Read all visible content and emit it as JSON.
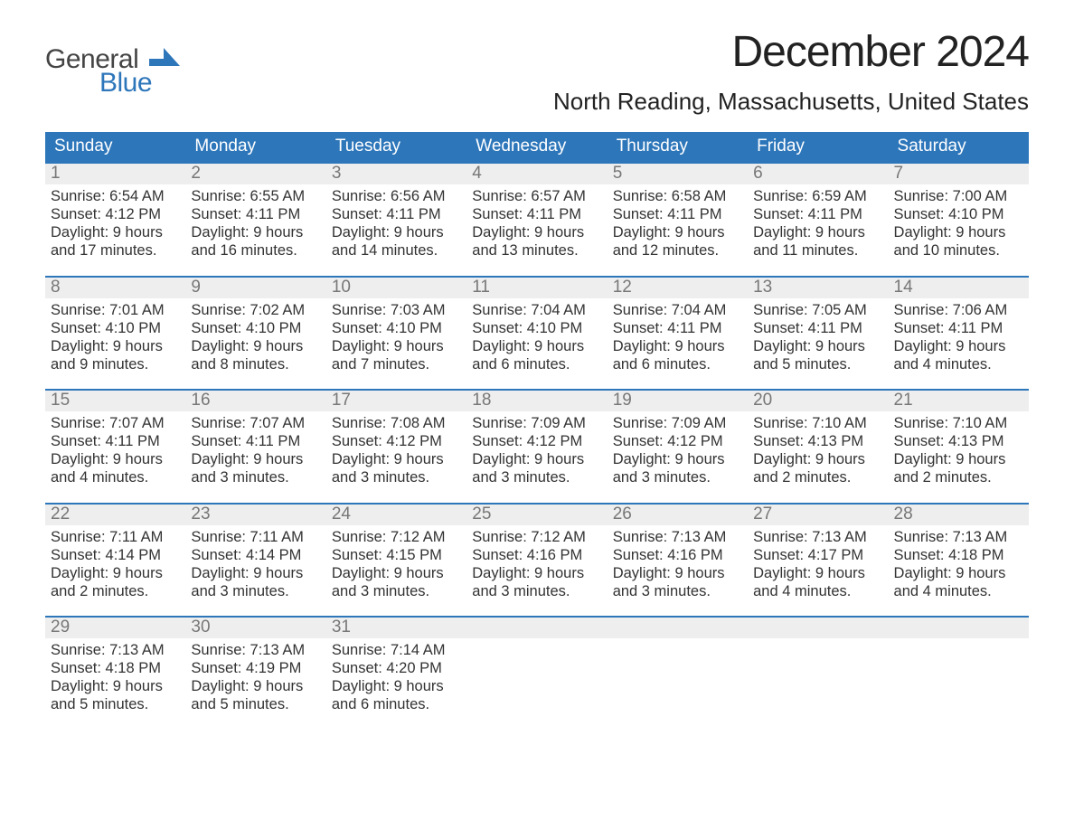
{
  "logo": {
    "line1": "General",
    "line2": "Blue"
  },
  "title": "December 2024",
  "location": "North Reading, Massachusetts, United States",
  "weekdays": [
    "Sunday",
    "Monday",
    "Tuesday",
    "Wednesday",
    "Thursday",
    "Friday",
    "Saturday"
  ],
  "colors": {
    "header_blue": "#2d76ba",
    "day_bg": "#eeeeee",
    "text": "#222222",
    "logo_blue": "#2d76ba"
  },
  "weeks": [
    [
      {
        "n": "1",
        "sr": "Sunrise: 6:54 AM",
        "ss": "Sunset: 4:12 PM",
        "d1": "Daylight: 9 hours",
        "d2": "and 17 minutes."
      },
      {
        "n": "2",
        "sr": "Sunrise: 6:55 AM",
        "ss": "Sunset: 4:11 PM",
        "d1": "Daylight: 9 hours",
        "d2": "and 16 minutes."
      },
      {
        "n": "3",
        "sr": "Sunrise: 6:56 AM",
        "ss": "Sunset: 4:11 PM",
        "d1": "Daylight: 9 hours",
        "d2": "and 14 minutes."
      },
      {
        "n": "4",
        "sr": "Sunrise: 6:57 AM",
        "ss": "Sunset: 4:11 PM",
        "d1": "Daylight: 9 hours",
        "d2": "and 13 minutes."
      },
      {
        "n": "5",
        "sr": "Sunrise: 6:58 AM",
        "ss": "Sunset: 4:11 PM",
        "d1": "Daylight: 9 hours",
        "d2": "and 12 minutes."
      },
      {
        "n": "6",
        "sr": "Sunrise: 6:59 AM",
        "ss": "Sunset: 4:11 PM",
        "d1": "Daylight: 9 hours",
        "d2": "and 11 minutes."
      },
      {
        "n": "7",
        "sr": "Sunrise: 7:00 AM",
        "ss": "Sunset: 4:10 PM",
        "d1": "Daylight: 9 hours",
        "d2": "and 10 minutes."
      }
    ],
    [
      {
        "n": "8",
        "sr": "Sunrise: 7:01 AM",
        "ss": "Sunset: 4:10 PM",
        "d1": "Daylight: 9 hours",
        "d2": "and 9 minutes."
      },
      {
        "n": "9",
        "sr": "Sunrise: 7:02 AM",
        "ss": "Sunset: 4:10 PM",
        "d1": "Daylight: 9 hours",
        "d2": "and 8 minutes."
      },
      {
        "n": "10",
        "sr": "Sunrise: 7:03 AM",
        "ss": "Sunset: 4:10 PM",
        "d1": "Daylight: 9 hours",
        "d2": "and 7 minutes."
      },
      {
        "n": "11",
        "sr": "Sunrise: 7:04 AM",
        "ss": "Sunset: 4:10 PM",
        "d1": "Daylight: 9 hours",
        "d2": "and 6 minutes."
      },
      {
        "n": "12",
        "sr": "Sunrise: 7:04 AM",
        "ss": "Sunset: 4:11 PM",
        "d1": "Daylight: 9 hours",
        "d2": "and 6 minutes."
      },
      {
        "n": "13",
        "sr": "Sunrise: 7:05 AM",
        "ss": "Sunset: 4:11 PM",
        "d1": "Daylight: 9 hours",
        "d2": "and 5 minutes."
      },
      {
        "n": "14",
        "sr": "Sunrise: 7:06 AM",
        "ss": "Sunset: 4:11 PM",
        "d1": "Daylight: 9 hours",
        "d2": "and 4 minutes."
      }
    ],
    [
      {
        "n": "15",
        "sr": "Sunrise: 7:07 AM",
        "ss": "Sunset: 4:11 PM",
        "d1": "Daylight: 9 hours",
        "d2": "and 4 minutes."
      },
      {
        "n": "16",
        "sr": "Sunrise: 7:07 AM",
        "ss": "Sunset: 4:11 PM",
        "d1": "Daylight: 9 hours",
        "d2": "and 3 minutes."
      },
      {
        "n": "17",
        "sr": "Sunrise: 7:08 AM",
        "ss": "Sunset: 4:12 PM",
        "d1": "Daylight: 9 hours",
        "d2": "and 3 minutes."
      },
      {
        "n": "18",
        "sr": "Sunrise: 7:09 AM",
        "ss": "Sunset: 4:12 PM",
        "d1": "Daylight: 9 hours",
        "d2": "and 3 minutes."
      },
      {
        "n": "19",
        "sr": "Sunrise: 7:09 AM",
        "ss": "Sunset: 4:12 PM",
        "d1": "Daylight: 9 hours",
        "d2": "and 3 minutes."
      },
      {
        "n": "20",
        "sr": "Sunrise: 7:10 AM",
        "ss": "Sunset: 4:13 PM",
        "d1": "Daylight: 9 hours",
        "d2": "and 2 minutes."
      },
      {
        "n": "21",
        "sr": "Sunrise: 7:10 AM",
        "ss": "Sunset: 4:13 PM",
        "d1": "Daylight: 9 hours",
        "d2": "and 2 minutes."
      }
    ],
    [
      {
        "n": "22",
        "sr": "Sunrise: 7:11 AM",
        "ss": "Sunset: 4:14 PM",
        "d1": "Daylight: 9 hours",
        "d2": "and 2 minutes."
      },
      {
        "n": "23",
        "sr": "Sunrise: 7:11 AM",
        "ss": "Sunset: 4:14 PM",
        "d1": "Daylight: 9 hours",
        "d2": "and 3 minutes."
      },
      {
        "n": "24",
        "sr": "Sunrise: 7:12 AM",
        "ss": "Sunset: 4:15 PM",
        "d1": "Daylight: 9 hours",
        "d2": "and 3 minutes."
      },
      {
        "n": "25",
        "sr": "Sunrise: 7:12 AM",
        "ss": "Sunset: 4:16 PM",
        "d1": "Daylight: 9 hours",
        "d2": "and 3 minutes."
      },
      {
        "n": "26",
        "sr": "Sunrise: 7:13 AM",
        "ss": "Sunset: 4:16 PM",
        "d1": "Daylight: 9 hours",
        "d2": "and 3 minutes."
      },
      {
        "n": "27",
        "sr": "Sunrise: 7:13 AM",
        "ss": "Sunset: 4:17 PM",
        "d1": "Daylight: 9 hours",
        "d2": "and 4 minutes."
      },
      {
        "n": "28",
        "sr": "Sunrise: 7:13 AM",
        "ss": "Sunset: 4:18 PM",
        "d1": "Daylight: 9 hours",
        "d2": "and 4 minutes."
      }
    ],
    [
      {
        "n": "29",
        "sr": "Sunrise: 7:13 AM",
        "ss": "Sunset: 4:18 PM",
        "d1": "Daylight: 9 hours",
        "d2": "and 5 minutes."
      },
      {
        "n": "30",
        "sr": "Sunrise: 7:13 AM",
        "ss": "Sunset: 4:19 PM",
        "d1": "Daylight: 9 hours",
        "d2": "and 5 minutes."
      },
      {
        "n": "31",
        "sr": "Sunrise: 7:14 AM",
        "ss": "Sunset: 4:20 PM",
        "d1": "Daylight: 9 hours",
        "d2": "and 6 minutes."
      },
      {
        "n": "",
        "sr": "",
        "ss": "",
        "d1": "",
        "d2": ""
      },
      {
        "n": "",
        "sr": "",
        "ss": "",
        "d1": "",
        "d2": ""
      },
      {
        "n": "",
        "sr": "",
        "ss": "",
        "d1": "",
        "d2": ""
      },
      {
        "n": "",
        "sr": "",
        "ss": "",
        "d1": "",
        "d2": ""
      }
    ]
  ]
}
